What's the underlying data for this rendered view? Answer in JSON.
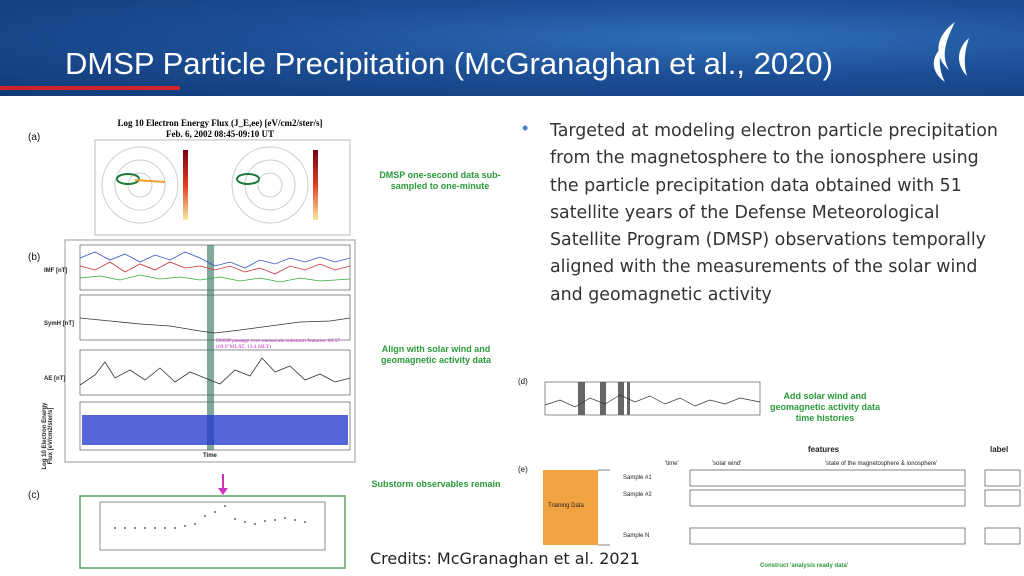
{
  "header": {
    "title": "DMSP Particle Precipitation (McGranaghan et al., 2020)"
  },
  "bullet": "Targeted at modeling electron particle precipitation from the magnetosphere to the ionosphere using the particle precipitation data obtained with 51 satellite years of the Defense Meteorological Satellite Program (DMSP) observations temporally aligned with the measurements of the solar wind and geomagnetic activity",
  "credits": "Credits: McGranaghan et al. 2021",
  "figure": {
    "panel_labels": [
      "(a)",
      "(b)",
      "(c)",
      "(d)",
      "(e)"
    ],
    "panel_a_title": [
      "Log 10 Electron Energy Flux (J_E,ee) [eV/cm2/ster/s]",
      "Feb. 6, 2002 08:45-09:10 UT"
    ],
    "plot_labels": [
      "IMF [nT]",
      "SymH [nT]",
      "AE [nT]",
      "Log 10 Electron Energy Flux [eV/cm2/ster/s]"
    ],
    "time_label": "Time",
    "substorm_note": "DMSP passage over mesoscale substorm features: 60.57 (69.9°MLAT, 13.4 MLT)",
    "annotations": [
      "DMSP one-second data sub-sampled to one-minute",
      "Align with solar wind and geomagnetic activity data",
      "Substorm observables remain",
      "Add solar wind and geomagnetic activity data time histories"
    ],
    "table": {
      "features": "features",
      "label": "label",
      "columns": [
        "'time'",
        "'solar wind'",
        "'state of the magnetosphere & ionosphere'"
      ],
      "rows": [
        "Sample #1",
        "Sample #2",
        "Sample N"
      ],
      "training": "Training Data",
      "footer": "Construct 'analysis ready data'"
    }
  }
}
